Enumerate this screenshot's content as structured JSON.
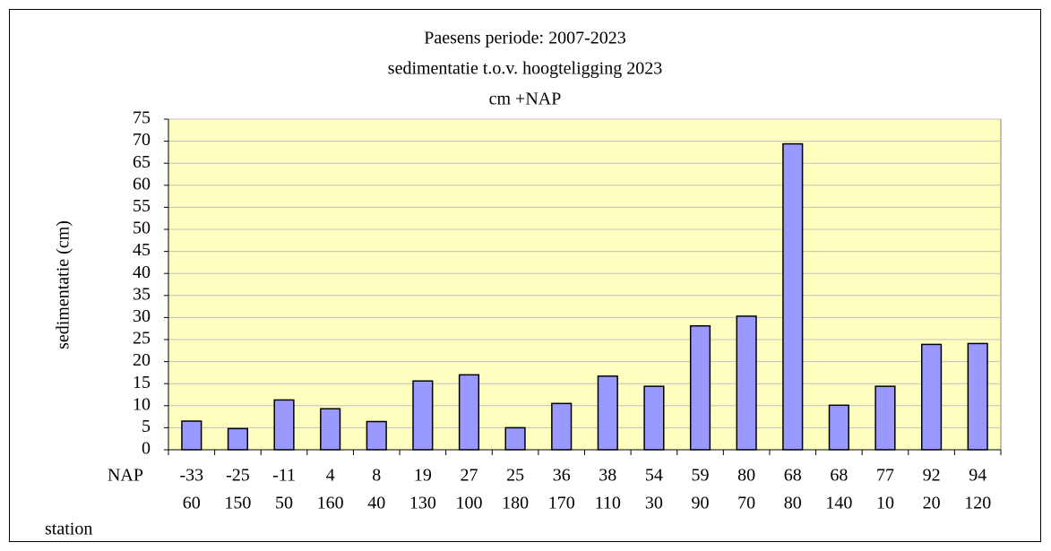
{
  "chart_data": {
    "type": "bar",
    "title": [
      "Paesens periode: 2007-2023",
      "sedimentatie t.o.v. hoogteligging 2023",
      "cm +NAP"
    ],
    "y_label": "sedimentatie (cm)",
    "category_levels": [
      {
        "name": "NAP",
        "labels": [
          "-33",
          "-25",
          "-11",
          "4",
          "8",
          "19",
          "27",
          "25",
          "36",
          "38",
          "54",
          "59",
          "80",
          "68",
          "68",
          "77",
          "92",
          "94"
        ]
      },
      {
        "name": "station",
        "labels": [
          "60",
          "150",
          "50",
          "160",
          "40",
          "130",
          "100",
          "180",
          "170",
          "110",
          "30",
          "90",
          "70",
          "80",
          "140",
          "10",
          "20",
          "120"
        ]
      }
    ],
    "values": [
      6.5,
      4.8,
      11.3,
      9.3,
      6.4,
      15.6,
      17,
      5,
      10.5,
      16.7,
      14.4,
      28.1,
      30.3,
      69.4,
      10.1,
      14.4,
      23.9,
      24.1
    ],
    "color": "#9999ff",
    "plot_background": "#ffffc0",
    "ylim": [
      0,
      75
    ],
    "yticks": [
      0,
      5,
      10,
      15,
      20,
      25,
      30,
      35,
      40,
      45,
      50,
      55,
      60,
      65,
      70,
      75
    ],
    "grid": true
  }
}
